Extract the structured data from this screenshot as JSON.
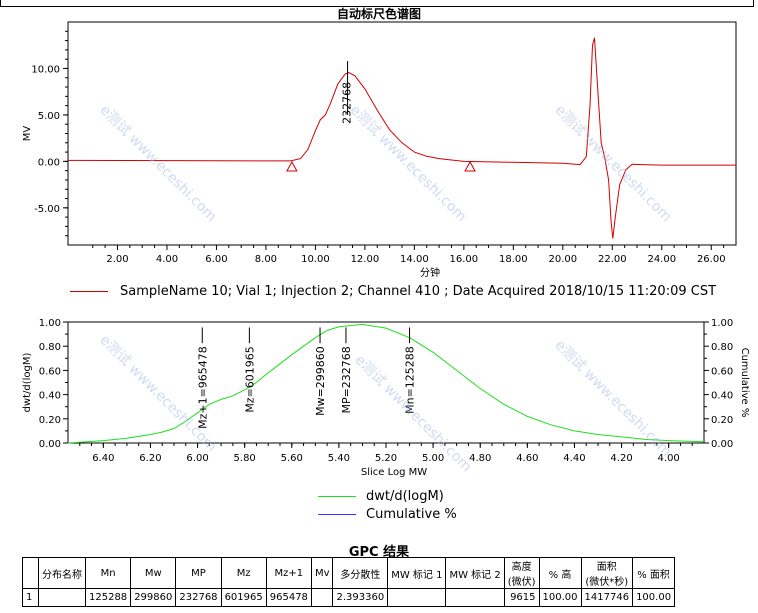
{
  "page_title": "自动标尺色谱图",
  "watermark": "e测试 www.eceshi.com",
  "chart_data": [
    {
      "type": "line",
      "ylabel": "MV",
      "xlabel": "分钟",
      "xlim": [
        0,
        27
      ],
      "ylim": [
        -9,
        15
      ],
      "x_ticks": [
        "2.00",
        "4.00",
        "6.00",
        "8.00",
        "10.00",
        "12.00",
        "14.00",
        "16.00",
        "18.00",
        "20.00",
        "22.00",
        "24.00",
        "26.00"
      ],
      "x_tick_values": [
        2,
        4,
        6,
        8,
        10,
        12,
        14,
        16,
        18,
        20,
        22,
        24,
        26
      ],
      "y_ticks": [
        "-5.00",
        "0.00",
        "5.00",
        "10.00"
      ],
      "y_tick_values": [
        -5,
        0,
        5,
        10
      ],
      "peak_label": "232768",
      "peak_label_x": 11.3,
      "baseline_markers": [
        {
          "x": 9.05,
          "y": -0.6
        },
        {
          "x": 16.25,
          "y": -0.6
        }
      ],
      "series": [
        {
          "name": "SampleName 10; Vial 1; Injection 2; Channel 410 ; Date Acquired 2018/10/15 11:20:09 CST",
          "color": "#d40000",
          "points": [
            [
              0,
              0.1
            ],
            [
              9.0,
              0.05
            ],
            [
              9.4,
              0.3
            ],
            [
              9.7,
              1.3
            ],
            [
              10.0,
              3.3
            ],
            [
              10.2,
              4.5
            ],
            [
              10.4,
              5.0
            ],
            [
              10.6,
              6.2
            ],
            [
              10.9,
              8.3
            ],
            [
              11.2,
              9.4
            ],
            [
              11.35,
              9.55
            ],
            [
              11.6,
              9.2
            ],
            [
              12.0,
              7.8
            ],
            [
              12.5,
              5.5
            ],
            [
              13.0,
              3.4
            ],
            [
              13.5,
              2.0
            ],
            [
              14.0,
              1.0
            ],
            [
              14.5,
              0.55
            ],
            [
              15.0,
              0.3
            ],
            [
              16.0,
              0.0
            ],
            [
              18.0,
              -0.1
            ],
            [
              20.0,
              -0.2
            ],
            [
              20.7,
              -0.35
            ],
            [
              20.95,
              0.5
            ],
            [
              21.1,
              6.0
            ],
            [
              21.2,
              12.5
            ],
            [
              21.28,
              13.3
            ],
            [
              21.38,
              9.0
            ],
            [
              21.55,
              2.0
            ],
            [
              21.7,
              0.3
            ],
            [
              21.85,
              -2.0
            ],
            [
              21.95,
              -6.5
            ],
            [
              22.02,
              -8.3
            ],
            [
              22.12,
              -6.0
            ],
            [
              22.3,
              -2.5
            ],
            [
              22.55,
              -0.9
            ],
            [
              22.8,
              -0.3
            ],
            [
              23.2,
              -0.35
            ],
            [
              24.0,
              -0.4
            ],
            [
              27.0,
              -0.4
            ]
          ]
        }
      ]
    },
    {
      "type": "line",
      "ylabel": "dwt/d(logM)",
      "y2label": "Cumulative %",
      "xlabel": "Slice Log MW",
      "xlim": [
        6.55,
        3.85
      ],
      "ylim": [
        0,
        1
      ],
      "x_ticks": [
        "6.40",
        "6.20",
        "6.00",
        "5.80",
        "5.60",
        "5.40",
        "5.20",
        "5.00",
        "4.80",
        "4.60",
        "4.40",
        "4.20",
        "4.00"
      ],
      "x_tick_values": [
        6.4,
        6.2,
        6.0,
        5.8,
        5.6,
        5.4,
        5.2,
        5.0,
        4.8,
        4.6,
        4.4,
        4.2,
        4.0
      ],
      "y_ticks": [
        "0.00",
        "0.20",
        "0.40",
        "0.60",
        "0.80",
        "1.00"
      ],
      "y_tick_values": [
        0,
        0.2,
        0.4,
        0.6,
        0.8,
        1.0
      ],
      "y2_ticks": [
        "0.00",
        "0.20",
        "0.40",
        "0.60",
        "0.80",
        "1.00"
      ],
      "markers": [
        {
          "label": "Mz+1=965478",
          "x": 5.98
        },
        {
          "label": "Mz=601965",
          "x": 5.78
        },
        {
          "label": "Mw=299860",
          "x": 5.48
        },
        {
          "label": "MP=232768",
          "x": 5.37
        },
        {
          "label": "Mn=125288",
          "x": 5.1
        }
      ],
      "series": [
        {
          "name": "dwt/d(logM)",
          "color": "#22dd22",
          "points": [
            [
              6.55,
              0.0
            ],
            [
              6.4,
              0.02
            ],
            [
              6.3,
              0.04
            ],
            [
              6.2,
              0.07
            ],
            [
              6.15,
              0.09
            ],
            [
              6.1,
              0.12
            ],
            [
              6.05,
              0.18
            ],
            [
              6.0,
              0.25
            ],
            [
              5.95,
              0.32
            ],
            [
              5.9,
              0.36
            ],
            [
              5.85,
              0.39
            ],
            [
              5.8,
              0.44
            ],
            [
              5.75,
              0.5
            ],
            [
              5.7,
              0.58
            ],
            [
              5.6,
              0.73
            ],
            [
              5.5,
              0.87
            ],
            [
              5.45,
              0.93
            ],
            [
              5.4,
              0.96
            ],
            [
              5.3,
              0.98
            ],
            [
              5.2,
              0.95
            ],
            [
              5.1,
              0.87
            ],
            [
              5.0,
              0.75
            ],
            [
              4.9,
              0.6
            ],
            [
              4.8,
              0.45
            ],
            [
              4.7,
              0.32
            ],
            [
              4.6,
              0.22
            ],
            [
              4.5,
              0.15
            ],
            [
              4.4,
              0.1
            ],
            [
              4.3,
              0.07
            ],
            [
              4.2,
              0.05
            ],
            [
              4.1,
              0.03
            ],
            [
              4.0,
              0.02
            ],
            [
              3.85,
              0.01
            ]
          ]
        },
        {
          "name": "Cumulative %",
          "color": "#3333ff",
          "points": []
        }
      ]
    }
  ],
  "gpc": {
    "title": "GPC 结果",
    "headers": [
      "",
      "分布名称",
      "Mn",
      "Mw",
      "MP",
      "Mz",
      "Mz+1",
      "Mv",
      "多分散性",
      "MW 标记 1",
      "MW 标记 2",
      "高度\n(微伏)",
      "% 高",
      "面积\n(微伏*秒)",
      "% 面积"
    ],
    "rows": [
      [
        "1",
        "",
        "125288",
        "299860",
        "232768",
        "601965",
        "965478",
        "",
        "2.393360",
        "",
        "",
        "9615",
        "100.00",
        "1417746",
        "100.00"
      ]
    ]
  }
}
